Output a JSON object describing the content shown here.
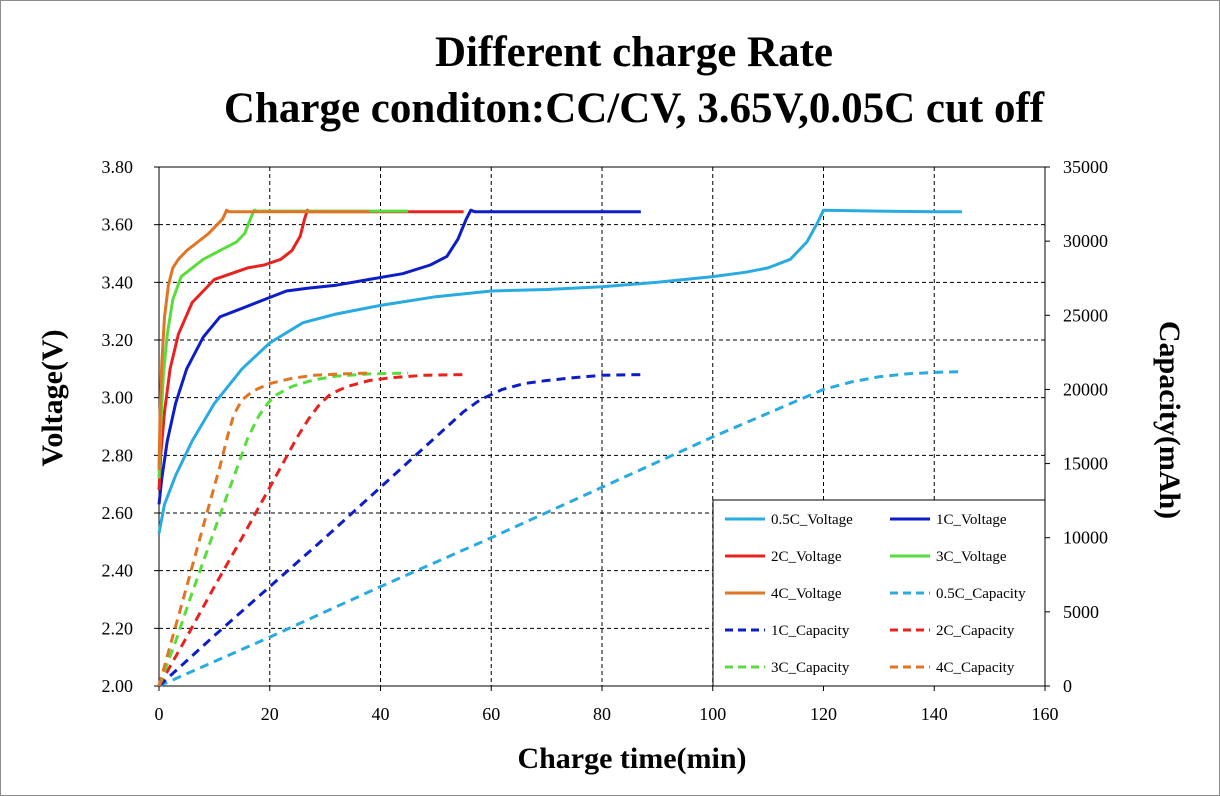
{
  "chart_data": {
    "type": "line",
    "title": "Different charge Rate",
    "subtitle": "Charge conditon:CC/CV, 3.65V,0.05C cut off",
    "xlabel": "Charge time(min)",
    "ylabel": "Voltage(V)",
    "y2label": "Capacity(mAh)",
    "xlim": [
      0,
      160
    ],
    "ylim": [
      2.0,
      3.8
    ],
    "y2lim": [
      0,
      35000
    ],
    "x_ticks": [
      "0",
      "20",
      "40",
      "60",
      "80",
      "100",
      "120",
      "140",
      "160"
    ],
    "y_ticks": [
      "2.00",
      "2.20",
      "2.40",
      "2.60",
      "2.80",
      "3.00",
      "3.20",
      "3.40",
      "3.60",
      "3.80"
    ],
    "y2_ticks": [
      "0",
      "5000",
      "10000",
      "15000",
      "20000",
      "25000",
      "30000",
      "35000"
    ],
    "grid": true,
    "legend_position": "bottom-right",
    "series": [
      {
        "name": "0.5C_Voltage",
        "axis": "left",
        "style": "solid",
        "color": "#29ABE2",
        "x": [
          0,
          1,
          3,
          6,
          10,
          15,
          20,
          26,
          32,
          40,
          50,
          60,
          70,
          80,
          90,
          100,
          106,
          110,
          114,
          117,
          119,
          120,
          130,
          140,
          145
        ],
        "y": [
          2.53,
          2.63,
          2.73,
          2.85,
          2.98,
          3.1,
          3.19,
          3.26,
          3.29,
          3.32,
          3.35,
          3.37,
          3.375,
          3.385,
          3.4,
          3.42,
          3.435,
          3.45,
          3.48,
          3.54,
          3.61,
          3.65,
          3.647,
          3.645,
          3.645
        ]
      },
      {
        "name": "1C_Voltage",
        "axis": "left",
        "style": "solid",
        "color": "#0D1EC8",
        "x": [
          0,
          0.5,
          1.5,
          3,
          5,
          8,
          11,
          15,
          19,
          23,
          27,
          32,
          38,
          44,
          49,
          52,
          54,
          55.5,
          56.3,
          57,
          65,
          75,
          87
        ],
        "y": [
          2.63,
          2.72,
          2.85,
          2.98,
          3.1,
          3.21,
          3.28,
          3.31,
          3.34,
          3.37,
          3.38,
          3.39,
          3.41,
          3.43,
          3.46,
          3.49,
          3.55,
          3.62,
          3.65,
          3.645,
          3.645,
          3.645,
          3.645
        ]
      },
      {
        "name": "2C_Voltage",
        "axis": "left",
        "style": "solid",
        "color": "#E8231F",
        "x": [
          0,
          0.3,
          1,
          2,
          3.5,
          6,
          8,
          10,
          13,
          16,
          19,
          22,
          24,
          25.5,
          26.3,
          26.8,
          27.2,
          30,
          40,
          50,
          55
        ],
        "y": [
          2.68,
          2.8,
          2.95,
          3.1,
          3.22,
          3.33,
          3.37,
          3.41,
          3.43,
          3.45,
          3.46,
          3.48,
          3.51,
          3.56,
          3.62,
          3.65,
          3.645,
          3.645,
          3.645,
          3.645,
          3.645
        ]
      },
      {
        "name": "3C_Voltage",
        "axis": "left",
        "style": "solid",
        "color": "#59DD3C",
        "x": [
          0,
          0.3,
          0.8,
          1.5,
          2.5,
          4,
          6,
          8,
          10,
          12,
          14,
          15.5,
          16.5,
          17.2,
          17.7,
          18.2,
          25,
          35,
          45
        ],
        "y": [
          2.72,
          2.9,
          3.08,
          3.22,
          3.34,
          3.42,
          3.45,
          3.48,
          3.5,
          3.52,
          3.54,
          3.57,
          3.62,
          3.65,
          3.647,
          3.647,
          3.647,
          3.647,
          3.647
        ]
      },
      {
        "name": "4C_Voltage",
        "axis": "left",
        "style": "solid",
        "color": "#E07623",
        "x": [
          0,
          0.2,
          0.5,
          1,
          1.7,
          2.5,
          3.5,
          5,
          7,
          9,
          10.5,
          11.5,
          12.2,
          12.6,
          13,
          20,
          30,
          38
        ],
        "y": [
          2.75,
          2.95,
          3.12,
          3.28,
          3.39,
          3.45,
          3.48,
          3.51,
          3.54,
          3.57,
          3.6,
          3.62,
          3.65,
          3.645,
          3.645,
          3.645,
          3.645,
          3.645
        ]
      },
      {
        "name": "0.5C_Capacity",
        "axis": "right",
        "style": "dashed",
        "color": "#29ABE2",
        "x": [
          0,
          20,
          40,
          60,
          80,
          100,
          110,
          115,
          120,
          125,
          130,
          135,
          140,
          145
        ],
        "y": [
          0,
          3300,
          6700,
          10000,
          13400,
          16800,
          18400,
          19200,
          20000,
          20500,
          20850,
          21050,
          21150,
          21200
        ]
      },
      {
        "name": "1C_Capacity",
        "axis": "right",
        "style": "dashed",
        "color": "#0D1EC8",
        "x": [
          0,
          10,
          20,
          30,
          40,
          50,
          55,
          58,
          62,
          66,
          70,
          75,
          80,
          87
        ],
        "y": [
          0,
          3400,
          6700,
          10000,
          13400,
          16800,
          18500,
          19300,
          20000,
          20400,
          20600,
          20800,
          20950,
          21000
        ]
      },
      {
        "name": "2C_Capacity",
        "axis": "right",
        "style": "dashed",
        "color": "#E8231F",
        "x": [
          0,
          5,
          10,
          15,
          20,
          25,
          27,
          29,
          31,
          34,
          38,
          42,
          48,
          55
        ],
        "y": [
          0,
          3300,
          6700,
          10000,
          13400,
          16800,
          18000,
          19000,
          19700,
          20200,
          20600,
          20800,
          20950,
          21000
        ]
      },
      {
        "name": "3C_Capacity",
        "axis": "right",
        "style": "dashed",
        "color": "#59DD3C",
        "x": [
          0,
          3,
          6,
          10,
          14,
          16,
          18,
          19.5,
          21,
          24,
          28,
          32,
          38,
          45
        ],
        "y": [
          0,
          3000,
          6300,
          10500,
          14600,
          16700,
          18200,
          19000,
          19600,
          20200,
          20650,
          20900,
          21050,
          21100
        ]
      },
      {
        "name": "4C_Capacity",
        "axis": "right",
        "style": "dashed",
        "color": "#E07623",
        "x": [
          0,
          2,
          5,
          8,
          11,
          12.5,
          13.5,
          15,
          17,
          20,
          24,
          28,
          33,
          38
        ],
        "y": [
          0,
          2700,
          6700,
          10800,
          14800,
          17000,
          18300,
          19300,
          19900,
          20400,
          20750,
          20950,
          21050,
          21100
        ]
      }
    ]
  }
}
